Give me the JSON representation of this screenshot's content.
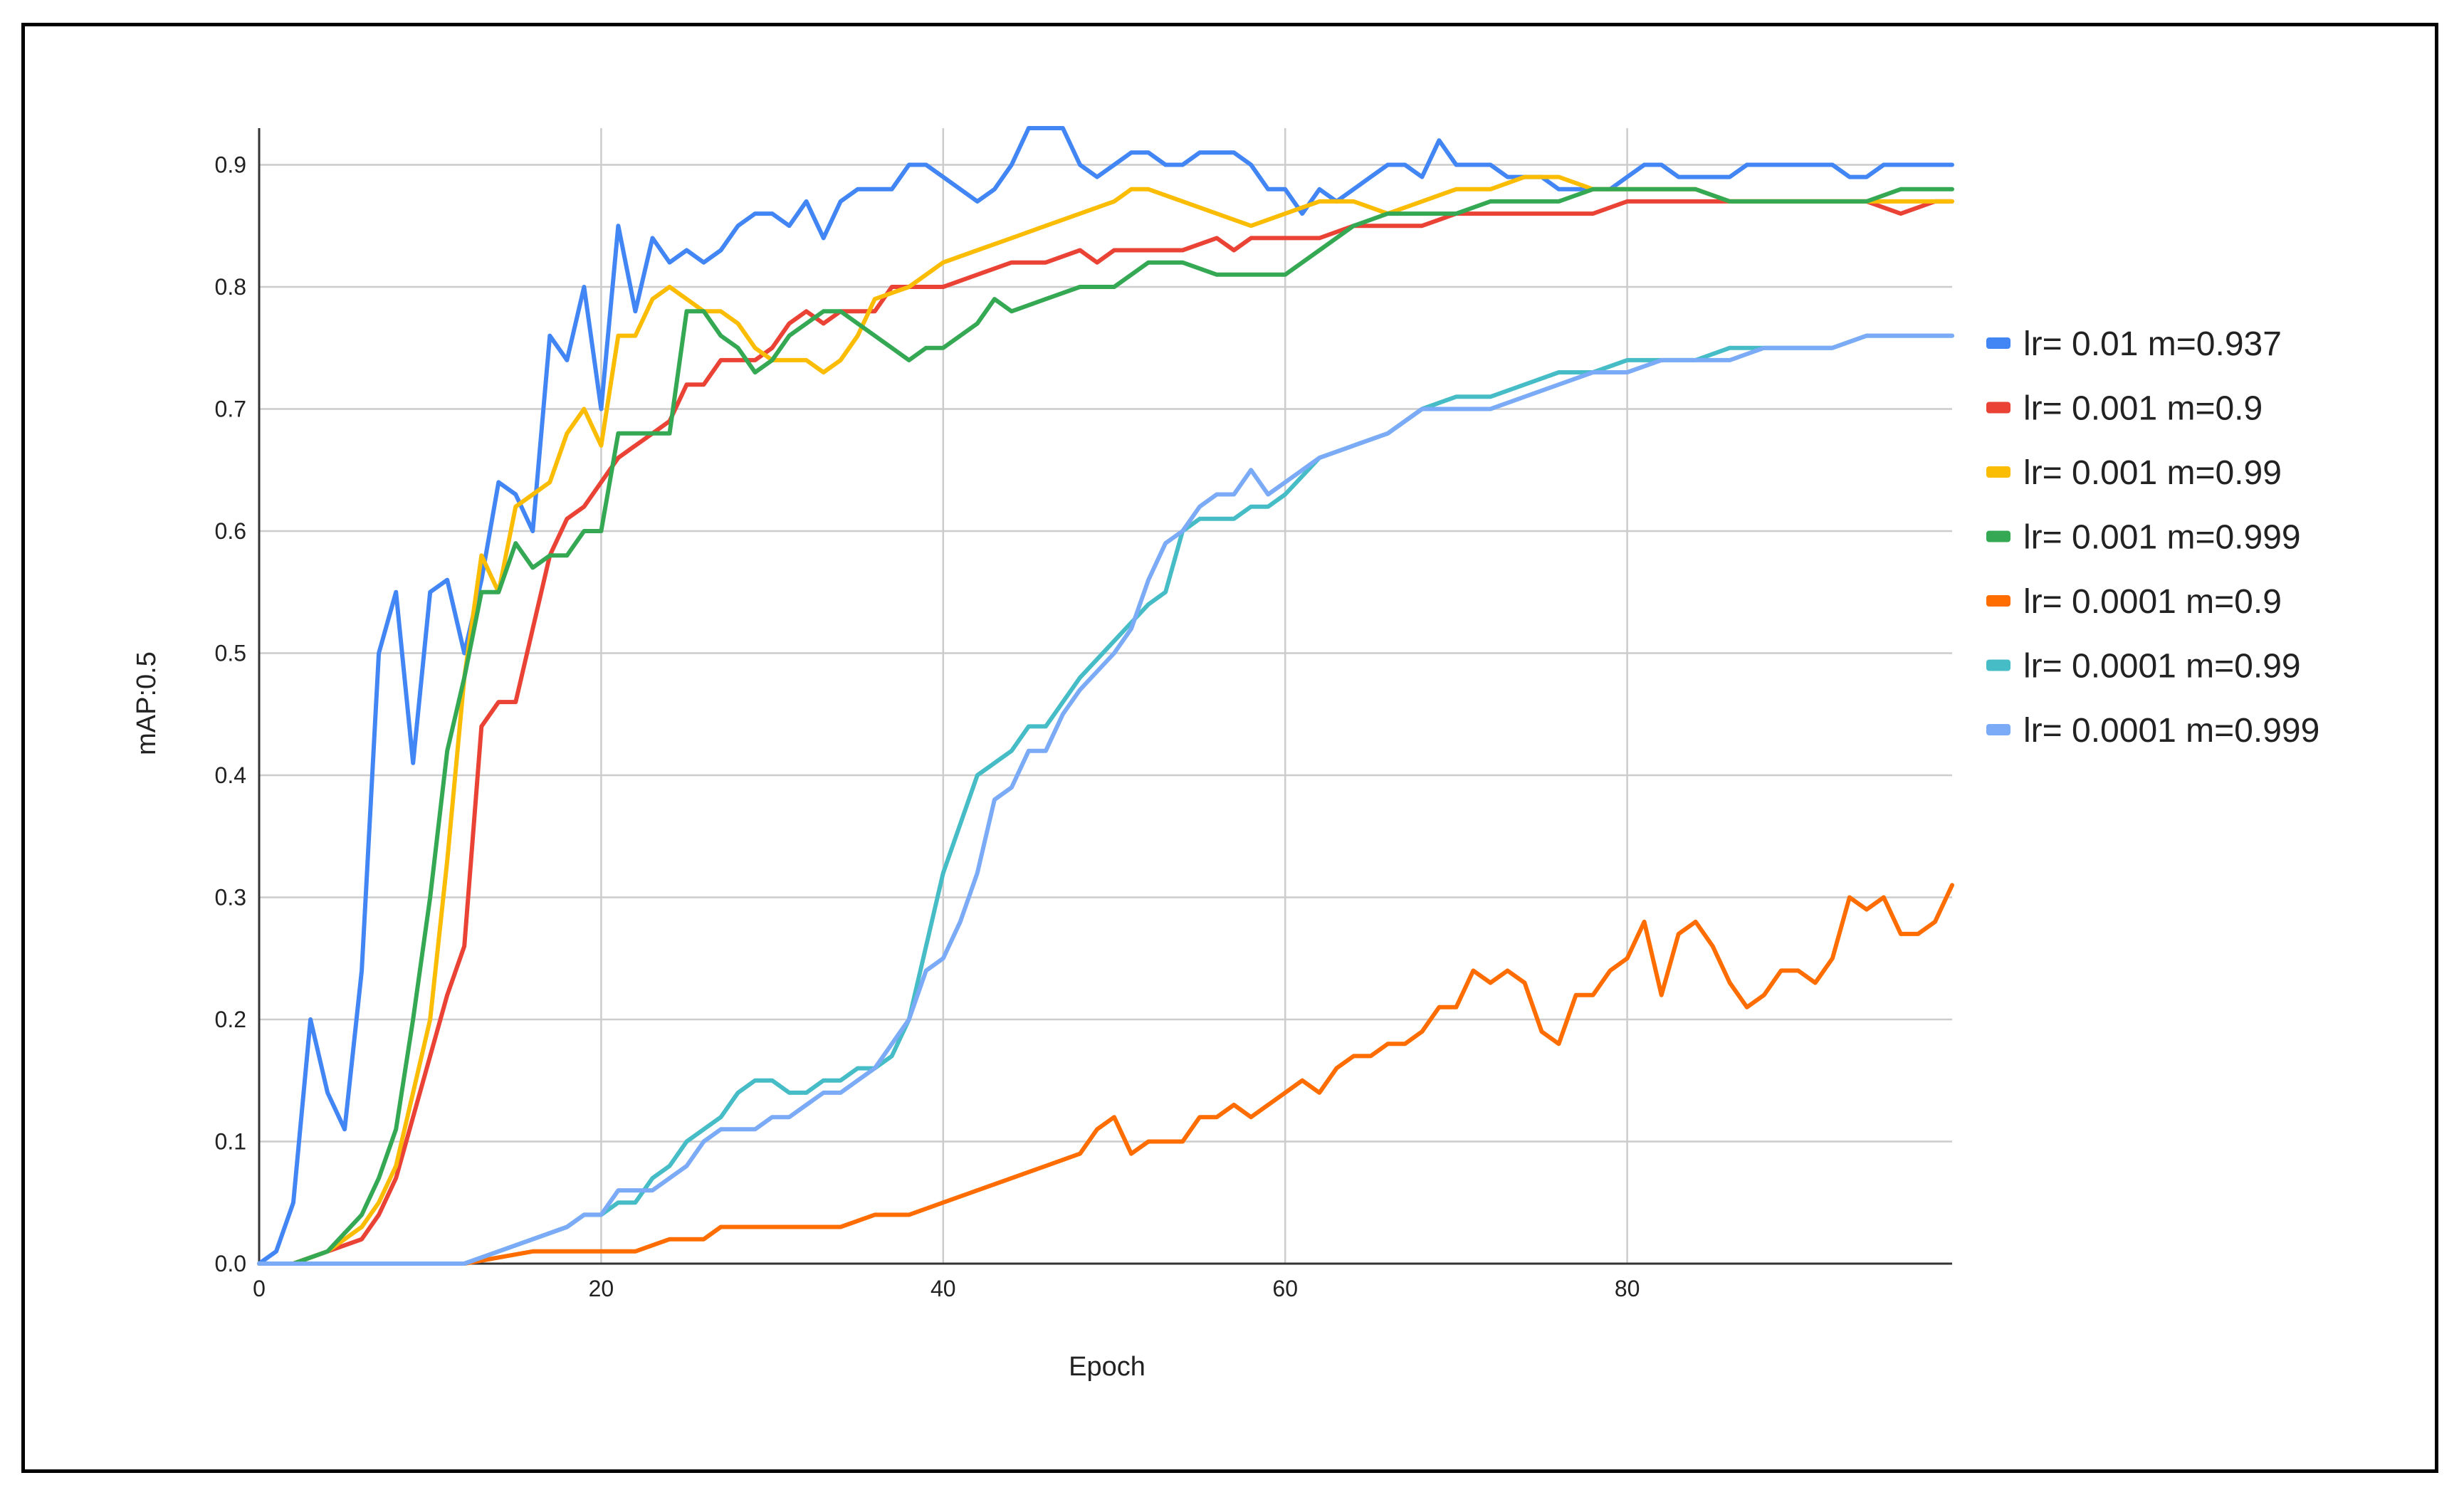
{
  "chart_data": {
    "type": "line",
    "title": "",
    "xlabel": "Epoch",
    "ylabel": "mAP:0.5",
    "xlim": [
      0,
      99
    ],
    "ylim": [
      0,
      0.93
    ],
    "x_ticks": [
      0,
      20,
      40,
      60,
      80
    ],
    "y_ticks": [
      0.0,
      0.1,
      0.2,
      0.3,
      0.4,
      0.5,
      0.6,
      0.7,
      0.8,
      0.9
    ],
    "grid": true,
    "legend_position": "right",
    "series": [
      {
        "name": "lr= 0.01 m=0.937",
        "color": "#4285F4",
        "x": [
          0,
          1,
          2,
          3,
          4,
          5,
          6,
          7,
          8,
          9,
          10,
          11,
          12,
          13,
          14,
          15,
          16,
          17,
          18,
          19,
          20,
          21,
          22,
          23,
          24,
          25,
          26,
          27,
          28,
          29,
          30,
          31,
          32,
          33,
          34,
          35,
          36,
          37,
          38,
          39,
          40,
          42,
          43,
          44,
          45,
          46,
          47,
          48,
          49,
          50,
          51,
          52,
          53,
          54,
          55,
          56,
          57,
          58,
          59,
          60,
          61,
          62,
          63,
          64,
          65,
          66,
          67,
          68,
          69,
          70,
          71,
          72,
          73,
          74,
          75,
          76,
          77,
          78,
          79,
          80,
          81,
          82,
          83,
          84,
          85,
          86,
          87,
          88,
          89,
          90,
          91,
          92,
          93,
          94,
          95,
          96,
          97,
          98,
          99
        ],
        "values": [
          0.0,
          0.01,
          0.05,
          0.2,
          0.14,
          0.11,
          0.24,
          0.5,
          0.55,
          0.41,
          0.55,
          0.56,
          0.5,
          0.56,
          0.64,
          0.63,
          0.6,
          0.76,
          0.74,
          0.8,
          0.7,
          0.85,
          0.78,
          0.84,
          0.82,
          0.83,
          0.82,
          0.83,
          0.85,
          0.86,
          0.86,
          0.85,
          0.87,
          0.84,
          0.87,
          0.88,
          0.88,
          0.88,
          0.9,
          0.9,
          0.89,
          0.87,
          0.88,
          0.9,
          0.93,
          0.93,
          0.93,
          0.9,
          0.89,
          0.9,
          0.91,
          0.91,
          0.9,
          0.9,
          0.91,
          0.91,
          0.91,
          0.9,
          0.88,
          0.88,
          0.86,
          0.88,
          0.87,
          0.88,
          0.89,
          0.9,
          0.9,
          0.89,
          0.92,
          0.9,
          0.9,
          0.9,
          0.89,
          0.89,
          0.89,
          0.88,
          0.88,
          0.88,
          0.88,
          0.89,
          0.9,
          0.9,
          0.89,
          0.89,
          0.89,
          0.89,
          0.9,
          0.9,
          0.9,
          0.9,
          0.9,
          0.9,
          0.89,
          0.89,
          0.9,
          0.9,
          0.9,
          0.9,
          0.9
        ]
      },
      {
        "name": "lr= 0.001 m=0.9",
        "color": "#EA4335",
        "x": [
          0,
          2,
          4,
          6,
          7,
          8,
          9,
          10,
          11,
          12,
          13,
          14,
          15,
          16,
          17,
          18,
          19,
          20,
          21,
          22,
          23,
          24,
          25,
          26,
          27,
          28,
          29,
          30,
          31,
          32,
          33,
          34,
          35,
          36,
          37,
          38,
          40,
          42,
          44,
          46,
          48,
          49,
          50,
          52,
          54,
          56,
          57,
          58,
          60,
          62,
          64,
          66,
          68,
          70,
          72,
          74,
          76,
          78,
          80,
          82,
          84,
          86,
          88,
          90,
          92,
          94,
          96,
          98,
          99
        ],
        "values": [
          0.0,
          0.0,
          0.01,
          0.02,
          0.04,
          0.07,
          0.12,
          0.17,
          0.22,
          0.26,
          0.44,
          0.46,
          0.46,
          0.52,
          0.58,
          0.61,
          0.62,
          0.64,
          0.66,
          0.67,
          0.68,
          0.69,
          0.72,
          0.72,
          0.74,
          0.74,
          0.74,
          0.75,
          0.77,
          0.78,
          0.77,
          0.78,
          0.78,
          0.78,
          0.8,
          0.8,
          0.8,
          0.81,
          0.82,
          0.82,
          0.83,
          0.82,
          0.83,
          0.83,
          0.83,
          0.84,
          0.83,
          0.84,
          0.84,
          0.84,
          0.85,
          0.85,
          0.85,
          0.86,
          0.86,
          0.86,
          0.86,
          0.86,
          0.87,
          0.87,
          0.87,
          0.87,
          0.87,
          0.87,
          0.87,
          0.87,
          0.86,
          0.87,
          0.87
        ]
      },
      {
        "name": "lr= 0.001 m=0.99",
        "color": "#FBBC04",
        "x": [
          0,
          2,
          4,
          6,
          7,
          8,
          9,
          10,
          11,
          12,
          13,
          14,
          15,
          16,
          17,
          18,
          19,
          20,
          21,
          22,
          23,
          24,
          25,
          26,
          27,
          28,
          29,
          30,
          31,
          32,
          33,
          34,
          35,
          36,
          38,
          40,
          42,
          44,
          46,
          48,
          50,
          51,
          52,
          54,
          56,
          58,
          60,
          62,
          64,
          66,
          68,
          70,
          72,
          74,
          76,
          78,
          80,
          82,
          84,
          86,
          88,
          90,
          92,
          94,
          96,
          98,
          99
        ],
        "values": [
          0.0,
          0.0,
          0.01,
          0.03,
          0.05,
          0.08,
          0.14,
          0.2,
          0.33,
          0.48,
          0.58,
          0.55,
          0.62,
          0.63,
          0.64,
          0.68,
          0.7,
          0.67,
          0.76,
          0.76,
          0.79,
          0.8,
          0.79,
          0.78,
          0.78,
          0.77,
          0.75,
          0.74,
          0.74,
          0.74,
          0.73,
          0.74,
          0.76,
          0.79,
          0.8,
          0.82,
          0.83,
          0.84,
          0.85,
          0.86,
          0.87,
          0.88,
          0.88,
          0.87,
          0.86,
          0.85,
          0.86,
          0.87,
          0.87,
          0.86,
          0.87,
          0.88,
          0.88,
          0.89,
          0.89,
          0.88,
          0.88,
          0.88,
          0.88,
          0.87,
          0.87,
          0.87,
          0.87,
          0.87,
          0.87,
          0.87,
          0.87
        ]
      },
      {
        "name": "lr= 0.001 m=0.999",
        "color": "#34A853",
        "x": [
          0,
          2,
          4,
          6,
          7,
          8,
          9,
          10,
          11,
          12,
          13,
          14,
          15,
          16,
          17,
          18,
          19,
          20,
          21,
          22,
          23,
          24,
          25,
          26,
          27,
          28,
          29,
          30,
          31,
          32,
          33,
          34,
          35,
          36,
          37,
          38,
          39,
          40,
          42,
          43,
          44,
          46,
          48,
          50,
          52,
          54,
          56,
          58,
          60,
          62,
          64,
          66,
          68,
          70,
          72,
          74,
          76,
          78,
          80,
          82,
          84,
          86,
          88,
          90,
          92,
          94,
          96,
          98,
          99
        ],
        "values": [
          0.0,
          0.0,
          0.01,
          0.04,
          0.07,
          0.11,
          0.2,
          0.3,
          0.42,
          0.48,
          0.55,
          0.55,
          0.59,
          0.57,
          0.58,
          0.58,
          0.6,
          0.6,
          0.68,
          0.68,
          0.68,
          0.68,
          0.78,
          0.78,
          0.76,
          0.75,
          0.73,
          0.74,
          0.76,
          0.77,
          0.78,
          0.78,
          0.77,
          0.76,
          0.75,
          0.74,
          0.75,
          0.75,
          0.77,
          0.79,
          0.78,
          0.79,
          0.8,
          0.8,
          0.82,
          0.82,
          0.81,
          0.81,
          0.81,
          0.83,
          0.85,
          0.86,
          0.86,
          0.86,
          0.87,
          0.87,
          0.87,
          0.88,
          0.88,
          0.88,
          0.88,
          0.87,
          0.87,
          0.87,
          0.87,
          0.87,
          0.88,
          0.88,
          0.88
        ]
      },
      {
        "name": "lr= 0.0001 m=0.9",
        "color": "#FF6D01",
        "x": [
          0,
          4,
          8,
          12,
          16,
          18,
          20,
          22,
          24,
          26,
          27,
          28,
          30,
          32,
          34,
          36,
          38,
          40,
          42,
          44,
          46,
          48,
          49,
          50,
          51,
          52,
          54,
          55,
          56,
          57,
          58,
          60,
          61,
          62,
          63,
          64,
          65,
          66,
          67,
          68,
          69,
          70,
          71,
          72,
          73,
          74,
          75,
          76,
          77,
          78,
          79,
          80,
          81,
          82,
          83,
          84,
          85,
          86,
          87,
          88,
          89,
          90,
          91,
          92,
          93,
          94,
          95,
          96,
          97,
          98,
          99
        ],
        "values": [
          0.0,
          0.0,
          0.0,
          0.0,
          0.01,
          0.01,
          0.01,
          0.01,
          0.02,
          0.02,
          0.03,
          0.03,
          0.03,
          0.03,
          0.03,
          0.04,
          0.04,
          0.05,
          0.06,
          0.07,
          0.08,
          0.09,
          0.11,
          0.12,
          0.09,
          0.1,
          0.1,
          0.12,
          0.12,
          0.13,
          0.12,
          0.14,
          0.15,
          0.14,
          0.16,
          0.17,
          0.17,
          0.18,
          0.18,
          0.19,
          0.21,
          0.21,
          0.24,
          0.23,
          0.24,
          0.23,
          0.19,
          0.18,
          0.22,
          0.22,
          0.24,
          0.25,
          0.28,
          0.22,
          0.27,
          0.28,
          0.26,
          0.23,
          0.21,
          0.22,
          0.24,
          0.24,
          0.23,
          0.25,
          0.3,
          0.29,
          0.3,
          0.27,
          0.27,
          0.28,
          0.31
        ]
      },
      {
        "name": "lr= 0.0001 m=0.99",
        "color": "#46BDC6",
        "x": [
          0,
          4,
          8,
          12,
          14,
          16,
          18,
          19,
          20,
          21,
          22,
          23,
          24,
          25,
          26,
          27,
          28,
          29,
          30,
          31,
          32,
          33,
          34,
          35,
          36,
          37,
          38,
          39,
          40,
          41,
          42,
          43,
          44,
          45,
          46,
          47,
          48,
          50,
          52,
          53,
          54,
          55,
          56,
          57,
          58,
          59,
          60,
          62,
          64,
          66,
          68,
          70,
          72,
          74,
          76,
          78,
          80,
          82,
          84,
          86,
          88,
          90,
          92,
          94,
          96,
          98,
          99
        ],
        "values": [
          0.0,
          0.0,
          0.0,
          0.0,
          0.01,
          0.02,
          0.03,
          0.04,
          0.04,
          0.05,
          0.05,
          0.07,
          0.08,
          0.1,
          0.11,
          0.12,
          0.14,
          0.15,
          0.15,
          0.14,
          0.14,
          0.15,
          0.15,
          0.16,
          0.16,
          0.17,
          0.2,
          0.26,
          0.32,
          0.36,
          0.4,
          0.41,
          0.42,
          0.44,
          0.44,
          0.46,
          0.48,
          0.51,
          0.54,
          0.55,
          0.6,
          0.61,
          0.61,
          0.61,
          0.62,
          0.62,
          0.63,
          0.66,
          0.67,
          0.68,
          0.7,
          0.71,
          0.71,
          0.72,
          0.73,
          0.73,
          0.74,
          0.74,
          0.74,
          0.75,
          0.75,
          0.75,
          0.75,
          0.76,
          0.76,
          0.76,
          0.76
        ]
      },
      {
        "name": "lr= 0.0001 m=0.999",
        "color": "#7BAAF7",
        "x": [
          0,
          4,
          8,
          12,
          14,
          16,
          18,
          19,
          20,
          21,
          22,
          23,
          24,
          25,
          26,
          27,
          28,
          29,
          30,
          31,
          32,
          33,
          34,
          35,
          36,
          37,
          38,
          39,
          40,
          41,
          42,
          43,
          44,
          45,
          46,
          47,
          48,
          50,
          51,
          52,
          53,
          54,
          55,
          56,
          57,
          58,
          59,
          60,
          62,
          64,
          66,
          68,
          70,
          72,
          74,
          76,
          78,
          80,
          82,
          84,
          86,
          88,
          90,
          92,
          94,
          96,
          98,
          99
        ],
        "values": [
          0.0,
          0.0,
          0.0,
          0.0,
          0.01,
          0.02,
          0.03,
          0.04,
          0.04,
          0.06,
          0.06,
          0.06,
          0.07,
          0.08,
          0.1,
          0.11,
          0.11,
          0.11,
          0.12,
          0.12,
          0.13,
          0.14,
          0.14,
          0.15,
          0.16,
          0.18,
          0.2,
          0.24,
          0.25,
          0.28,
          0.32,
          0.38,
          0.39,
          0.42,
          0.42,
          0.45,
          0.47,
          0.5,
          0.52,
          0.56,
          0.59,
          0.6,
          0.62,
          0.63,
          0.63,
          0.65,
          0.63,
          0.64,
          0.66,
          0.67,
          0.68,
          0.7,
          0.7,
          0.7,
          0.71,
          0.72,
          0.73,
          0.73,
          0.74,
          0.74,
          0.74,
          0.75,
          0.75,
          0.75,
          0.76,
          0.76,
          0.76,
          0.76
        ]
      }
    ]
  }
}
